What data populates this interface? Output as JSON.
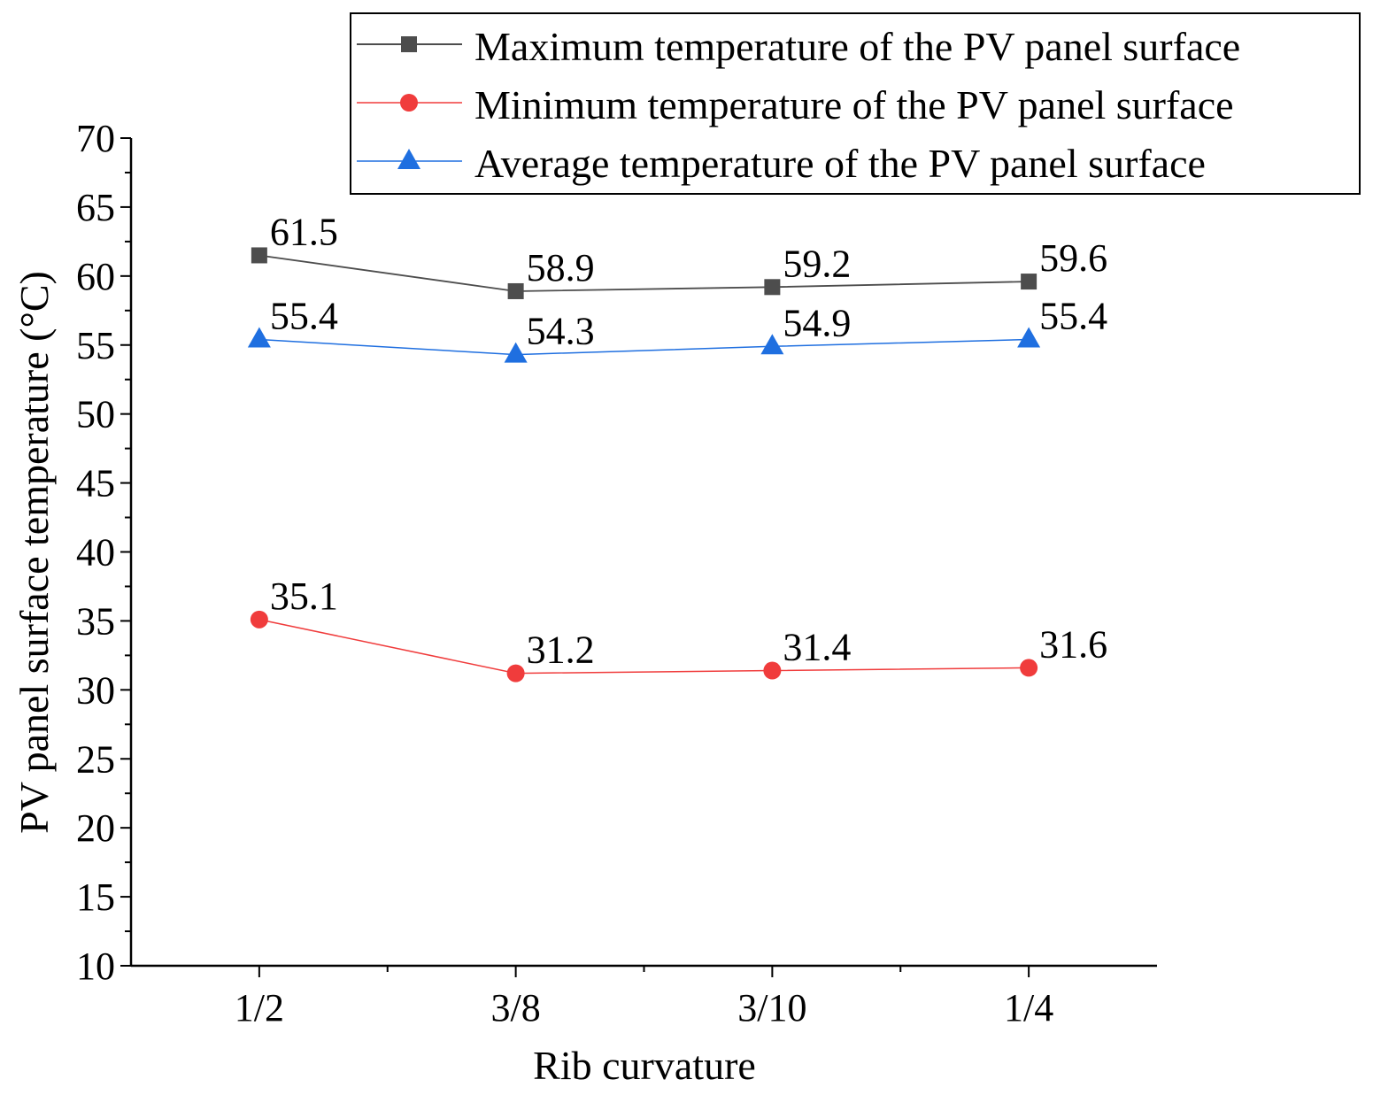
{
  "chart_data": {
    "type": "line",
    "title": "",
    "xlabel": "Rib curvature",
    "ylabel": "PV panel surface temperature (°C)",
    "categories": [
      "1/2",
      "3/8",
      "3/10",
      "1/4"
    ],
    "ylim": [
      10,
      70
    ],
    "yticks": [
      10,
      15,
      20,
      25,
      30,
      35,
      40,
      45,
      50,
      55,
      60,
      65,
      70
    ],
    "grid": false,
    "legend_position": "top-right",
    "series": [
      {
        "name": "Maximum temperature of the PV panel surface",
        "marker": "square",
        "color": "#4d4d4d",
        "values": [
          61.5,
          58.9,
          59.2,
          59.6
        ],
        "labels": [
          "61.5",
          "58.9",
          "59.2",
          "59.6"
        ]
      },
      {
        "name": "Minimum temperature of the PV panel surface",
        "marker": "circle",
        "color": "#f03c3c",
        "values": [
          35.1,
          31.2,
          31.4,
          31.6
        ],
        "labels": [
          "35.1",
          "31.2",
          "31.4",
          "31.6"
        ]
      },
      {
        "name": "Average temperature of the PV panel surface",
        "marker": "triangle",
        "color": "#1f6fe0",
        "values": [
          55.4,
          54.3,
          54.9,
          55.4
        ],
        "labels": [
          "55.4",
          "54.3",
          "54.9",
          "55.4"
        ]
      }
    ]
  }
}
